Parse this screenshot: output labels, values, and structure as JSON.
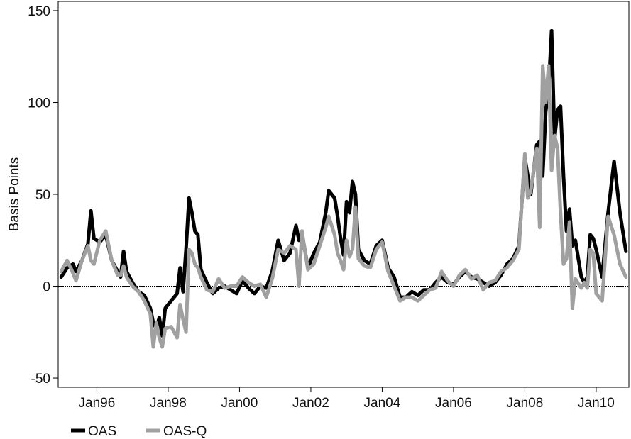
{
  "chart_data": {
    "type": "line",
    "title": "",
    "xlabel": "",
    "ylabel": "Basis Points",
    "xlim": [
      "1994-12",
      "2010-12"
    ],
    "ylim": [
      -55,
      155
    ],
    "xticks": [
      {
        "date": "1996-01",
        "label": "Jan96"
      },
      {
        "date": "1998-01",
        "label": "Jan98"
      },
      {
        "date": "2000-01",
        "label": "Jan00"
      },
      {
        "date": "2002-01",
        "label": "Jan02"
      },
      {
        "date": "2004-01",
        "label": "Jan04"
      },
      {
        "date": "2006-01",
        "label": "Jan06"
      },
      {
        "date": "2008-01",
        "label": "Jan08"
      },
      {
        "date": "2010-01",
        "label": "Jan10"
      }
    ],
    "yticks": [
      {
        "value": -50,
        "label": "-50"
      },
      {
        "value": 0,
        "label": "0"
      },
      {
        "value": 50,
        "label": "50"
      },
      {
        "value": 100,
        "label": "100"
      },
      {
        "value": 150,
        "label": "150"
      }
    ],
    "zero_line": true,
    "grid": false,
    "legend_position": "bottom-left",
    "series": [
      {
        "name": "OAS",
        "color": "#000000",
        "points": [
          [
            "1995-01",
            5
          ],
          [
            "1995-03",
            10
          ],
          [
            "1995-05",
            12
          ],
          [
            "1995-06",
            8
          ],
          [
            "1995-08",
            14
          ],
          [
            "1995-10",
            23
          ],
          [
            "1995-11",
            41
          ],
          [
            "1995-12",
            26
          ],
          [
            "1996-02",
            24
          ],
          [
            "1996-04",
            28
          ],
          [
            "1996-06",
            14
          ],
          [
            "1996-08",
            8
          ],
          [
            "1996-09",
            5
          ],
          [
            "1996-10",
            19
          ],
          [
            "1996-11",
            8
          ],
          [
            "1997-01",
            2
          ],
          [
            "1997-03",
            -3
          ],
          [
            "1997-05",
            -5
          ],
          [
            "1997-07",
            -12
          ],
          [
            "1997-08",
            -20
          ],
          [
            "1997-09",
            -23
          ],
          [
            "1997-10",
            -17
          ],
          [
            "1997-11",
            -27
          ],
          [
            "1997-12",
            -12
          ],
          [
            "1998-02",
            -8
          ],
          [
            "1998-04",
            -4
          ],
          [
            "1998-05",
            10
          ],
          [
            "1998-06",
            -3
          ],
          [
            "1998-07",
            20
          ],
          [
            "1998-08",
            48
          ],
          [
            "1998-09",
            40
          ],
          [
            "1998-10",
            30
          ],
          [
            "1998-11",
            28
          ],
          [
            "1998-12",
            9
          ],
          [
            "1999-02",
            2
          ],
          [
            "1999-04",
            -4
          ],
          [
            "1999-06",
            -1
          ],
          [
            "1999-08",
            0
          ],
          [
            "1999-10",
            -2
          ],
          [
            "1999-12",
            -4
          ],
          [
            "2000-02",
            3
          ],
          [
            "2000-04",
            -1
          ],
          [
            "2000-06",
            -4
          ],
          [
            "2000-08",
            0
          ],
          [
            "2000-10",
            -1
          ],
          [
            "2000-12",
            8
          ],
          [
            "2001-02",
            25
          ],
          [
            "2001-04",
            14
          ],
          [
            "2001-06",
            18
          ],
          [
            "2001-08",
            33
          ],
          [
            "2001-09",
            25
          ],
          [
            "2001-10",
            29
          ],
          [
            "2001-12",
            10
          ],
          [
            "2002-02",
            18
          ],
          [
            "2002-04",
            24
          ],
          [
            "2002-06",
            40
          ],
          [
            "2002-07",
            52
          ],
          [
            "2002-09",
            48
          ],
          [
            "2002-10",
            38
          ],
          [
            "2002-11",
            26
          ],
          [
            "2002-12",
            17
          ],
          [
            "2003-01",
            46
          ],
          [
            "2003-02",
            40
          ],
          [
            "2003-03",
            57
          ],
          [
            "2003-04",
            50
          ],
          [
            "2003-05",
            20
          ],
          [
            "2003-07",
            14
          ],
          [
            "2003-09",
            12
          ],
          [
            "2003-11",
            22
          ],
          [
            "2004-01",
            25
          ],
          [
            "2004-03",
            10
          ],
          [
            "2004-05",
            5
          ],
          [
            "2004-07",
            -6
          ],
          [
            "2004-09",
            -6
          ],
          [
            "2004-11",
            -3
          ],
          [
            "2005-01",
            -5
          ],
          [
            "2005-03",
            -2
          ],
          [
            "2005-05",
            -2
          ],
          [
            "2005-07",
            2
          ],
          [
            "2005-09",
            5
          ],
          [
            "2005-11",
            2
          ],
          [
            "2006-01",
            1
          ],
          [
            "2006-03",
            5
          ],
          [
            "2006-05",
            8
          ],
          [
            "2006-07",
            5
          ],
          [
            "2006-09",
            4
          ],
          [
            "2006-11",
            2
          ],
          [
            "2007-01",
            0
          ],
          [
            "2007-03",
            2
          ],
          [
            "2007-05",
            6
          ],
          [
            "2007-07",
            12
          ],
          [
            "2007-09",
            15
          ],
          [
            "2007-11",
            22
          ],
          [
            "2008-01",
            70
          ],
          [
            "2008-02",
            60
          ],
          [
            "2008-03",
            50
          ],
          [
            "2008-05",
            77
          ],
          [
            "2008-06",
            79
          ],
          [
            "2008-07",
            60
          ],
          [
            "2008-08",
            95
          ],
          [
            "2008-09",
            108
          ],
          [
            "2008-10",
            139
          ],
          [
            "2008-11",
            80
          ],
          [
            "2008-12",
            96
          ],
          [
            "2009-01",
            98
          ],
          [
            "2009-02",
            60
          ],
          [
            "2009-03",
            30
          ],
          [
            "2009-04",
            42
          ],
          [
            "2009-05",
            22
          ],
          [
            "2009-06",
            25
          ],
          [
            "2009-08",
            5
          ],
          [
            "2009-09",
            2
          ],
          [
            "2009-10",
            5
          ],
          [
            "2009-11",
            28
          ],
          [
            "2009-12",
            26
          ],
          [
            "2010-01",
            20
          ],
          [
            "2010-03",
            5
          ],
          [
            "2010-05",
            40
          ],
          [
            "2010-07",
            68
          ],
          [
            "2010-09",
            40
          ],
          [
            "2010-11",
            19
          ]
        ]
      },
      {
        "name": "OAS-Q",
        "color": "#a0a0a0",
        "points": [
          [
            "1995-01",
            8
          ],
          [
            "1995-03",
            14
          ],
          [
            "1995-05",
            7
          ],
          [
            "1995-06",
            3
          ],
          [
            "1995-08",
            14
          ],
          [
            "1995-10",
            22
          ],
          [
            "1995-11",
            14
          ],
          [
            "1995-12",
            12
          ],
          [
            "1996-02",
            25
          ],
          [
            "1996-04",
            30
          ],
          [
            "1996-06",
            14
          ],
          [
            "1996-08",
            6
          ],
          [
            "1996-09",
            6
          ],
          [
            "1996-10",
            11
          ],
          [
            "1996-11",
            5
          ],
          [
            "1997-01",
            0
          ],
          [
            "1997-03",
            -3
          ],
          [
            "1997-05",
            -8
          ],
          [
            "1997-07",
            -15
          ],
          [
            "1997-08",
            -33
          ],
          [
            "1997-09",
            -20
          ],
          [
            "1997-10",
            -28
          ],
          [
            "1997-11",
            -33
          ],
          [
            "1997-12",
            -23
          ],
          [
            "1998-02",
            -22
          ],
          [
            "1998-04",
            -28
          ],
          [
            "1998-05",
            -10
          ],
          [
            "1998-06",
            -18
          ],
          [
            "1998-07",
            -25
          ],
          [
            "1998-08",
            20
          ],
          [
            "1998-09",
            18
          ],
          [
            "1998-10",
            12
          ],
          [
            "1998-11",
            10
          ],
          [
            "1998-12",
            5
          ],
          [
            "1999-02",
            -2
          ],
          [
            "1999-04",
            -3
          ],
          [
            "1999-06",
            4
          ],
          [
            "1999-08",
            -1
          ],
          [
            "1999-10",
            0
          ],
          [
            "1999-12",
            0
          ],
          [
            "2000-02",
            5
          ],
          [
            "2000-04",
            2
          ],
          [
            "2000-06",
            0
          ],
          [
            "2000-08",
            1
          ],
          [
            "2000-10",
            -6
          ],
          [
            "2000-12",
            4
          ],
          [
            "2001-02",
            20
          ],
          [
            "2001-04",
            18
          ],
          [
            "2001-06",
            22
          ],
          [
            "2001-08",
            20
          ],
          [
            "2001-09",
            0
          ],
          [
            "2001-10",
            30
          ],
          [
            "2001-12",
            9
          ],
          [
            "2002-02",
            12
          ],
          [
            "2002-04",
            22
          ],
          [
            "2002-06",
            32
          ],
          [
            "2002-07",
            38
          ],
          [
            "2002-09",
            28
          ],
          [
            "2002-10",
            18
          ],
          [
            "2002-11",
            14
          ],
          [
            "2002-12",
            9
          ],
          [
            "2003-01",
            25
          ],
          [
            "2003-02",
            16
          ],
          [
            "2003-03",
            20
          ],
          [
            "2003-04",
            43
          ],
          [
            "2003-05",
            15
          ],
          [
            "2003-07",
            11
          ],
          [
            "2003-09",
            10
          ],
          [
            "2003-11",
            20
          ],
          [
            "2004-01",
            24
          ],
          [
            "2004-03",
            8
          ],
          [
            "2004-05",
            0
          ],
          [
            "2004-07",
            -8
          ],
          [
            "2004-09",
            -6
          ],
          [
            "2004-11",
            -6
          ],
          [
            "2005-01",
            -8
          ],
          [
            "2005-03",
            -5
          ],
          [
            "2005-05",
            -2
          ],
          [
            "2005-07",
            -1
          ],
          [
            "2005-09",
            8
          ],
          [
            "2005-11",
            3
          ],
          [
            "2006-01",
            0
          ],
          [
            "2006-03",
            6
          ],
          [
            "2006-05",
            9
          ],
          [
            "2006-07",
            4
          ],
          [
            "2006-09",
            6
          ],
          [
            "2006-11",
            -2
          ],
          [
            "2007-01",
            2
          ],
          [
            "2007-03",
            3
          ],
          [
            "2007-05",
            8
          ],
          [
            "2007-07",
            10
          ],
          [
            "2007-09",
            14
          ],
          [
            "2007-11",
            20
          ],
          [
            "2008-01",
            72
          ],
          [
            "2008-02",
            48
          ],
          [
            "2008-03",
            52
          ],
          [
            "2008-05",
            75
          ],
          [
            "2008-06",
            32
          ],
          [
            "2008-07",
            120
          ],
          [
            "2008-08",
            100
          ],
          [
            "2008-09",
            120
          ],
          [
            "2008-10",
            63
          ],
          [
            "2008-11",
            82
          ],
          [
            "2008-12",
            75
          ],
          [
            "2009-01",
            40
          ],
          [
            "2009-02",
            12
          ],
          [
            "2009-03",
            15
          ],
          [
            "2009-04",
            35
          ],
          [
            "2009-05",
            -12
          ],
          [
            "2009-06",
            4
          ],
          [
            "2009-08",
            -1
          ],
          [
            "2009-09",
            2
          ],
          [
            "2009-10",
            -1
          ],
          [
            "2009-11",
            20
          ],
          [
            "2009-12",
            18
          ],
          [
            "2010-01",
            -4
          ],
          [
            "2010-03",
            -8
          ],
          [
            "2010-05",
            38
          ],
          [
            "2010-07",
            28
          ],
          [
            "2010-09",
            12
          ],
          [
            "2010-11",
            5
          ]
        ]
      }
    ]
  }
}
